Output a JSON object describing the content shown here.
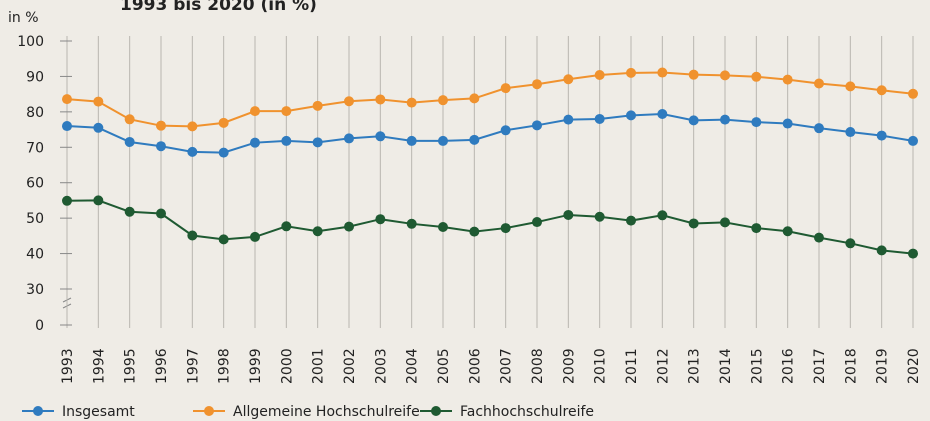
{
  "chart_data": {
    "type": "line",
    "title": "1993 bis 2020 (in %)",
    "y_label": "in %",
    "categories": [
      "1993",
      "1994",
      "1995",
      "1996",
      "1997",
      "1998",
      "1999",
      "2000",
      "2001",
      "2002",
      "2003",
      "2004",
      "2005",
      "2006",
      "2007",
      "2008",
      "2009",
      "2010",
      "2011",
      "2012",
      "2013",
      "2014",
      "2015",
      "2016",
      "2017",
      "2018",
      "2019",
      "2020"
    ],
    "series": [
      {
        "name": "Insgesamt",
        "color": "#2f7bbf",
        "values": [
          76.0,
          75.5,
          71.5,
          70.3,
          68.7,
          68.5,
          71.3,
          71.8,
          71.4,
          72.5,
          73.1,
          71.8,
          71.8,
          72.1,
          74.8,
          76.2,
          77.8,
          78.0,
          79.0,
          79.4,
          77.6,
          77.8,
          77.1,
          76.7,
          75.4,
          74.3,
          73.3,
          71.8
        ]
      },
      {
        "name": "Allgemeine Hochschulreife",
        "color": "#f0922e",
        "values": [
          83.6,
          82.9,
          77.9,
          76.1,
          75.9,
          76.9,
          80.2,
          80.2,
          81.7,
          83.0,
          83.5,
          82.6,
          83.3,
          83.8,
          86.7,
          87.8,
          89.2,
          90.4,
          91.0,
          91.1,
          90.5,
          90.3,
          89.9,
          89.1,
          88.0,
          87.2,
          86.1,
          85.1
        ]
      },
      {
        "name": "Fachhochschulreife",
        "color": "#1f5a32",
        "values": [
          54.9,
          55.0,
          51.8,
          51.3,
          45.1,
          44.0,
          44.7,
          47.7,
          46.3,
          47.6,
          49.7,
          48.4,
          47.5,
          46.2,
          47.2,
          48.9,
          50.9,
          50.4,
          49.3,
          50.8,
          48.5,
          48.8,
          47.2,
          46.3,
          44.5,
          42.9,
          40.9,
          40.0
        ]
      }
    ],
    "ylim": [
      0,
      100
    ],
    "axis_break": [
      0,
      30
    ],
    "yticks": [
      0,
      30,
      40,
      50,
      60,
      70,
      80,
      90,
      100
    ],
    "grid": true,
    "legend": "bottom"
  }
}
